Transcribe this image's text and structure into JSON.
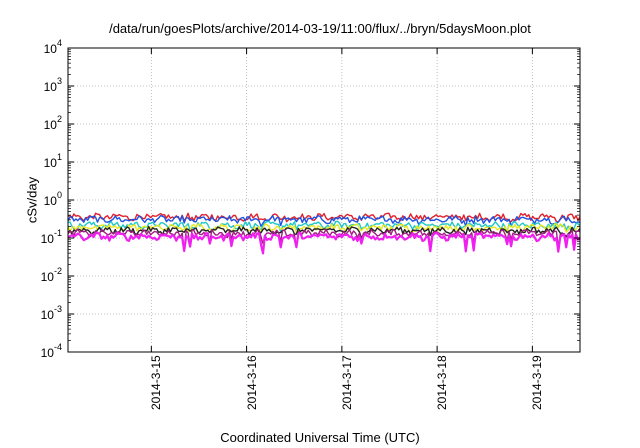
{
  "chart_data": {
    "type": "line",
    "title": "/data/run/goesPlots/archive/2014-03-19/11:00/flux/../bryn/5daysMoon.plot",
    "xlabel": "Coordinated Universal Time (UTC)",
    "ylabel": "cSv/day",
    "yscale": "log",
    "ylim": [
      0.0001,
      10000
    ],
    "xlim": [
      "2014-03-14 03:00",
      "2014-03-19 12:00"
    ],
    "grid": true,
    "legend": "none",
    "yticks": [
      {
        "base": "10",
        "exp": "4"
      },
      {
        "base": "10",
        "exp": "3"
      },
      {
        "base": "10",
        "exp": "2"
      },
      {
        "base": "10",
        "exp": "1"
      },
      {
        "base": "10",
        "exp": "0"
      },
      {
        "base": "10",
        "exp": "-1"
      },
      {
        "base": "10",
        "exp": "-2"
      },
      {
        "base": "10",
        "exp": "-3"
      },
      {
        "base": "10",
        "exp": "-4"
      }
    ],
    "xticks": [
      "2014-3-15",
      "2014-3-16",
      "2014-3-17",
      "2014-3-18",
      "2014-3-19"
    ],
    "series": [
      {
        "color": "#e0202a",
        "level": 0.36
      },
      {
        "color": "#2050e0",
        "level": 0.31
      },
      {
        "color": "#20c8c8",
        "level": 0.22
      },
      {
        "color": "#e8e820",
        "level": 0.19
      },
      {
        "color": "#202020",
        "level": 0.16
      },
      {
        "color": "#a02080",
        "level": 0.135
      },
      {
        "color": "#f020f0",
        "level": 0.11
      }
    ]
  }
}
